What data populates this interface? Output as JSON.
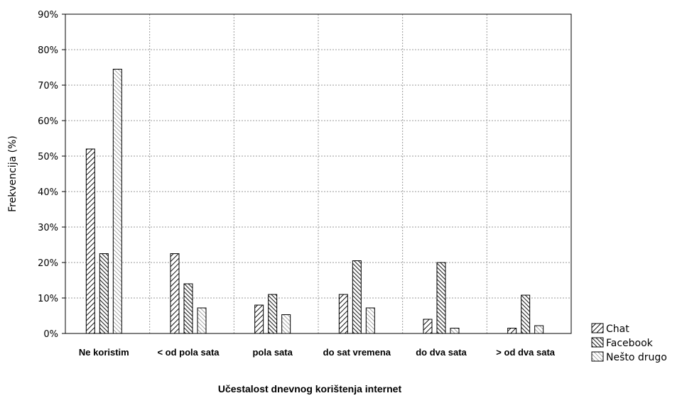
{
  "chart_data": {
    "type": "bar",
    "xlabel": "Učestalost dnevnog korištenja internet",
    "ylabel": "Frekvencija (%)",
    "ylim": [
      0,
      90
    ],
    "yticks": [
      0,
      10,
      20,
      30,
      40,
      50,
      60,
      70,
      80,
      90
    ],
    "ytick_labels": [
      "0%",
      "10%",
      "20%",
      "30%",
      "40%",
      "50%",
      "60%",
      "70%",
      "80%",
      "90%"
    ],
    "grid": true,
    "legend_position": "bottom-right, outside plot",
    "categories": [
      "Ne koristim",
      "< od pola sata",
      "pola sata",
      "do sat vremena",
      "do dva sata",
      "> od dva sata"
    ],
    "series": [
      {
        "name": "Chat",
        "values": [
          52,
          22.5,
          8,
          11,
          4,
          1.5
        ],
        "pattern": "hatch-dense"
      },
      {
        "name": "Facebook",
        "values": [
          22.5,
          14,
          11,
          20.5,
          20,
          10.8
        ],
        "pattern": "hatch-dark"
      },
      {
        "name": "Nešto drugo",
        "values": [
          74.5,
          7.2,
          5.3,
          7.2,
          1.5,
          2.2
        ],
        "pattern": "hatch-light"
      }
    ]
  }
}
